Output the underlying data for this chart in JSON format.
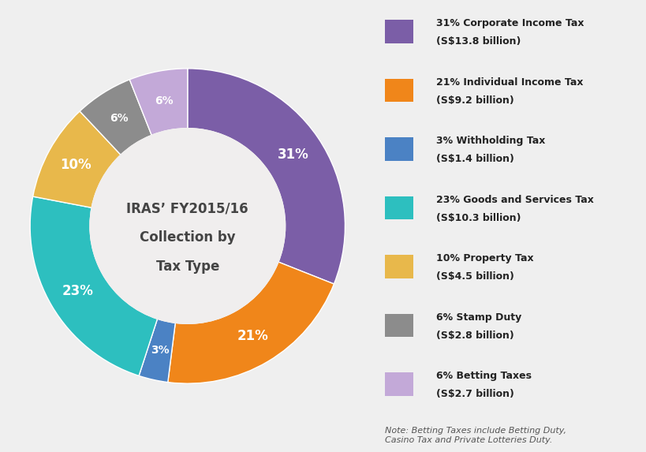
{
  "slices": [
    {
      "label": "Corporate Income Tax",
      "pct": 31,
      "value": "S$13.8 billion",
      "color": "#7B5EA7"
    },
    {
      "label": "Individual Income Tax",
      "pct": 21,
      "value": "S$9.2 billion",
      "color": "#F0861A"
    },
    {
      "label": "Withholding Tax",
      "pct": 3,
      "value": "S$1.4 billion",
      "color": "#4B82C4"
    },
    {
      "label": "Goods and Services Tax",
      "pct": 23,
      "value": "S$10.3 billion",
      "color": "#2DBFBF"
    },
    {
      "label": "Property Tax",
      "pct": 10,
      "value": "S$4.5 billion",
      "color": "#E8B84B"
    },
    {
      "label": "Stamp Duty",
      "pct": 6,
      "value": "S$2.8 billion",
      "color": "#8C8C8C"
    },
    {
      "label": "Betting Taxes",
      "pct": 6,
      "value": "S$2.7 billion",
      "color": "#C3A9D8"
    }
  ],
  "center_text_line1": "IRAS’ FY2015/16",
  "center_text_line2": "Collection by",
  "center_text_line3": "Tax Type",
  "note_text": "Note: Betting Taxes include Betting Duty,\nCasino Tax and Private Lotteries Duty.",
  "background_color": "#EFEFEF",
  "donut_width": 0.38,
  "label_pct_color": "#FFFFFF",
  "center_text_color": "#444444",
  "center_bg_color": "#F0EEEE"
}
